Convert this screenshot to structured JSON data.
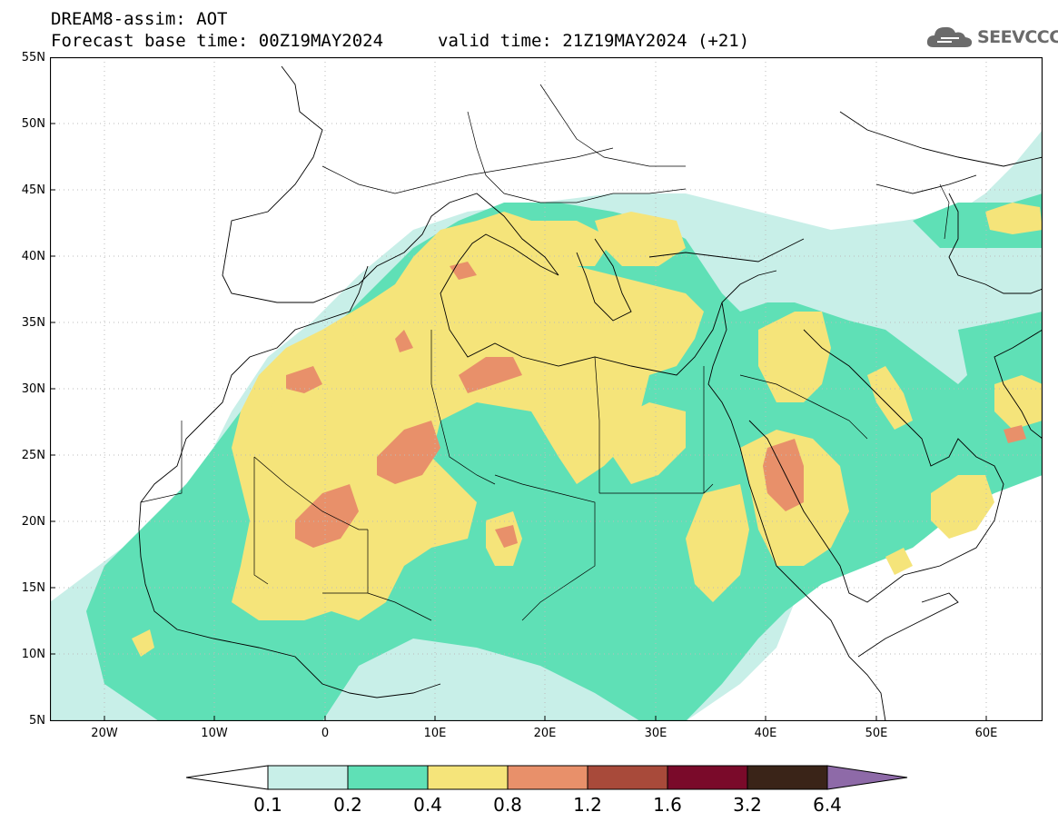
{
  "header": {
    "title": "DREAM8-assim: AOT",
    "base_time": "Forecast base time: 00Z19MAY2024",
    "valid_time": "valid time: 21Z19MAY2024 (+21)",
    "logo_text": "SEEVCCC"
  },
  "axes": {
    "lat_labels": [
      "55N",
      "50N",
      "45N",
      "40N",
      "35N",
      "30N",
      "25N",
      "20N",
      "15N",
      "10N",
      "5N"
    ],
    "lon_labels": [
      "20W",
      "10W",
      "0",
      "10E",
      "20E",
      "30E",
      "40E",
      "50E",
      "60E"
    ]
  },
  "colorbar": {
    "labels": [
      "0.1",
      "0.2",
      "0.4",
      "0.8",
      "1.2",
      "1.6",
      "3.2",
      "6.4"
    ],
    "colors": [
      "#ffffff",
      "#c8efe8",
      "#5fe0b6",
      "#f5e47a",
      "#e8906a",
      "#a84a3a",
      "#7a0a2a",
      "#3a2418",
      "#8e6aa8"
    ]
  }
}
